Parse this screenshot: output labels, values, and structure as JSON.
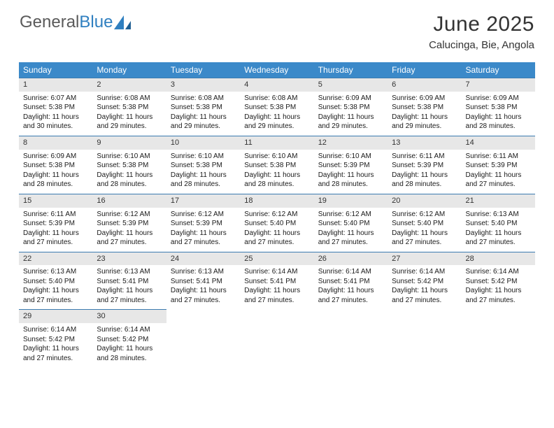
{
  "logo": {
    "word1": "General",
    "word2": "Blue"
  },
  "title": "June 2025",
  "subtitle": "Calucinga, Bie, Angola",
  "colors": {
    "header_bg": "#3b89c9",
    "header_text": "#ffffff",
    "daynum_bg": "#e7e7e7",
    "row_border": "#3b7bb0",
    "logo_gray": "#5a5a5a",
    "logo_blue": "#2f7fc0"
  },
  "weekdays": [
    "Sunday",
    "Monday",
    "Tuesday",
    "Wednesday",
    "Thursday",
    "Friday",
    "Saturday"
  ],
  "weeks": [
    [
      {
        "day": "1",
        "sunrise": "6:07 AM",
        "sunset": "5:38 PM",
        "daylight": "11 hours and 30 minutes."
      },
      {
        "day": "2",
        "sunrise": "6:08 AM",
        "sunset": "5:38 PM",
        "daylight": "11 hours and 29 minutes."
      },
      {
        "day": "3",
        "sunrise": "6:08 AM",
        "sunset": "5:38 PM",
        "daylight": "11 hours and 29 minutes."
      },
      {
        "day": "4",
        "sunrise": "6:08 AM",
        "sunset": "5:38 PM",
        "daylight": "11 hours and 29 minutes."
      },
      {
        "day": "5",
        "sunrise": "6:09 AM",
        "sunset": "5:38 PM",
        "daylight": "11 hours and 29 minutes."
      },
      {
        "day": "6",
        "sunrise": "6:09 AM",
        "sunset": "5:38 PM",
        "daylight": "11 hours and 29 minutes."
      },
      {
        "day": "7",
        "sunrise": "6:09 AM",
        "sunset": "5:38 PM",
        "daylight": "11 hours and 28 minutes."
      }
    ],
    [
      {
        "day": "8",
        "sunrise": "6:09 AM",
        "sunset": "5:38 PM",
        "daylight": "11 hours and 28 minutes."
      },
      {
        "day": "9",
        "sunrise": "6:10 AM",
        "sunset": "5:38 PM",
        "daylight": "11 hours and 28 minutes."
      },
      {
        "day": "10",
        "sunrise": "6:10 AM",
        "sunset": "5:38 PM",
        "daylight": "11 hours and 28 minutes."
      },
      {
        "day": "11",
        "sunrise": "6:10 AM",
        "sunset": "5:38 PM",
        "daylight": "11 hours and 28 minutes."
      },
      {
        "day": "12",
        "sunrise": "6:10 AM",
        "sunset": "5:39 PM",
        "daylight": "11 hours and 28 minutes."
      },
      {
        "day": "13",
        "sunrise": "6:11 AM",
        "sunset": "5:39 PM",
        "daylight": "11 hours and 28 minutes."
      },
      {
        "day": "14",
        "sunrise": "6:11 AM",
        "sunset": "5:39 PM",
        "daylight": "11 hours and 27 minutes."
      }
    ],
    [
      {
        "day": "15",
        "sunrise": "6:11 AM",
        "sunset": "5:39 PM",
        "daylight": "11 hours and 27 minutes."
      },
      {
        "day": "16",
        "sunrise": "6:12 AM",
        "sunset": "5:39 PM",
        "daylight": "11 hours and 27 minutes."
      },
      {
        "day": "17",
        "sunrise": "6:12 AM",
        "sunset": "5:39 PM",
        "daylight": "11 hours and 27 minutes."
      },
      {
        "day": "18",
        "sunrise": "6:12 AM",
        "sunset": "5:40 PM",
        "daylight": "11 hours and 27 minutes."
      },
      {
        "day": "19",
        "sunrise": "6:12 AM",
        "sunset": "5:40 PM",
        "daylight": "11 hours and 27 minutes."
      },
      {
        "day": "20",
        "sunrise": "6:12 AM",
        "sunset": "5:40 PM",
        "daylight": "11 hours and 27 minutes."
      },
      {
        "day": "21",
        "sunrise": "6:13 AM",
        "sunset": "5:40 PM",
        "daylight": "11 hours and 27 minutes."
      }
    ],
    [
      {
        "day": "22",
        "sunrise": "6:13 AM",
        "sunset": "5:40 PM",
        "daylight": "11 hours and 27 minutes."
      },
      {
        "day": "23",
        "sunrise": "6:13 AM",
        "sunset": "5:41 PM",
        "daylight": "11 hours and 27 minutes."
      },
      {
        "day": "24",
        "sunrise": "6:13 AM",
        "sunset": "5:41 PM",
        "daylight": "11 hours and 27 minutes."
      },
      {
        "day": "25",
        "sunrise": "6:14 AM",
        "sunset": "5:41 PM",
        "daylight": "11 hours and 27 minutes."
      },
      {
        "day": "26",
        "sunrise": "6:14 AM",
        "sunset": "5:41 PM",
        "daylight": "11 hours and 27 minutes."
      },
      {
        "day": "27",
        "sunrise": "6:14 AM",
        "sunset": "5:42 PM",
        "daylight": "11 hours and 27 minutes."
      },
      {
        "day": "28",
        "sunrise": "6:14 AM",
        "sunset": "5:42 PM",
        "daylight": "11 hours and 27 minutes."
      }
    ],
    [
      {
        "day": "29",
        "sunrise": "6:14 AM",
        "sunset": "5:42 PM",
        "daylight": "11 hours and 27 minutes."
      },
      {
        "day": "30",
        "sunrise": "6:14 AM",
        "sunset": "5:42 PM",
        "daylight": "11 hours and 28 minutes."
      },
      null,
      null,
      null,
      null,
      null
    ]
  ],
  "labels": {
    "sunrise_prefix": "Sunrise: ",
    "sunset_prefix": "Sunset: ",
    "daylight_prefix": "Daylight: "
  }
}
